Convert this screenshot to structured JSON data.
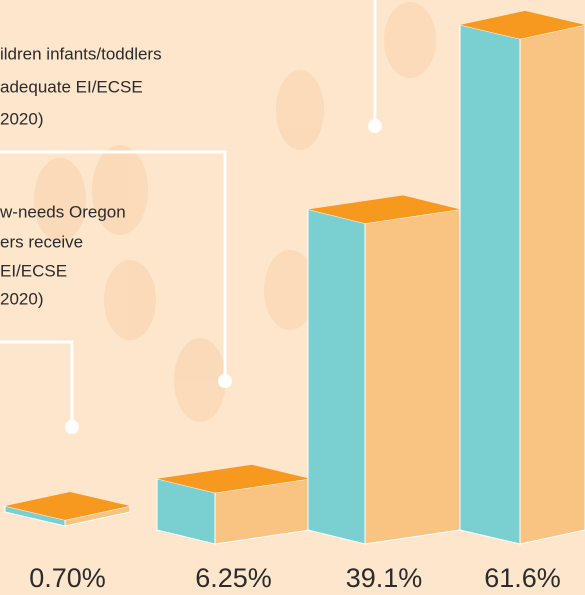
{
  "chart_data": {
    "type": "bar3d",
    "values": [
      0.7,
      6.25,
      39.1,
      61.6
    ],
    "value_labels": [
      "0.70%",
      "6.25%",
      "39.1%",
      "61.6%"
    ],
    "colors": {
      "front": "#7acfd0",
      "side": "#f9c482",
      "top": "#f7981f"
    },
    "annotations": [
      [
        "ildren infants/toddlers",
        "adequate EI/ECSE",
        "2020)"
      ],
      [
        "w-needs Oregon",
        "ers receive",
        "EI/ECSE",
        "2020)"
      ]
    ]
  }
}
